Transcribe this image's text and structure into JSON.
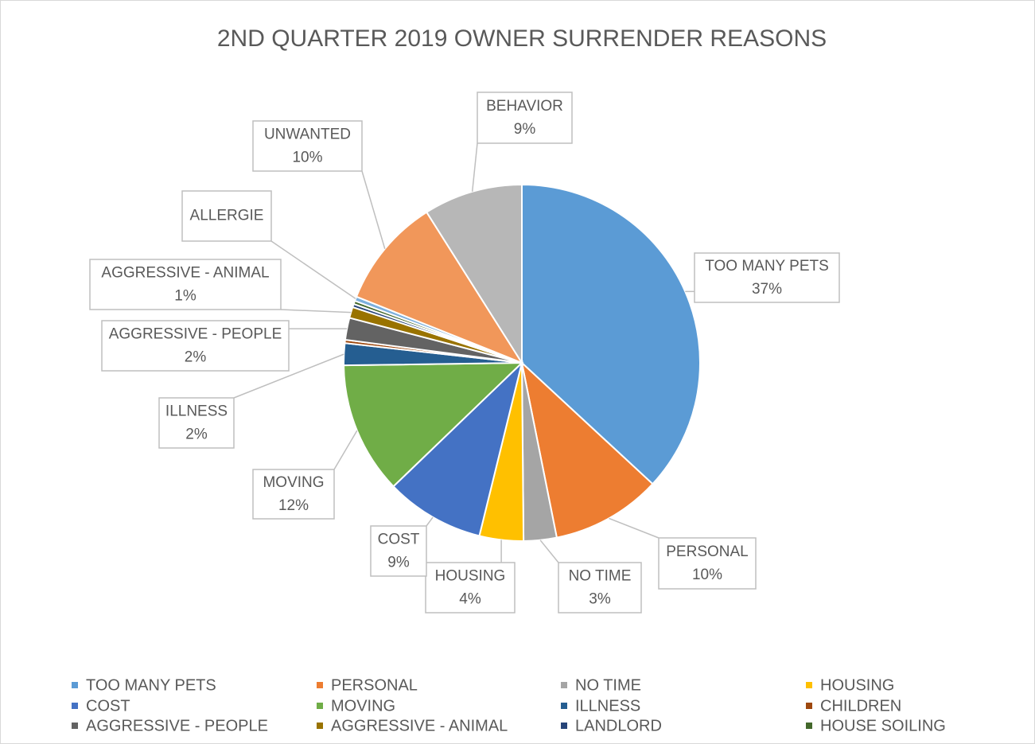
{
  "chart_data": {
    "type": "pie",
    "title": "2ND QUARTER 2019 OWNER SURRENDER REASONS",
    "categories": [
      "TOO MANY PETS",
      "PERSONAL",
      "NO TIME",
      "HOUSING",
      "COST",
      "MOVING",
      "ILLNESS",
      "CHILDREN",
      "AGGRESSIVE - PEOPLE",
      "AGGRESSIVE - ANIMAL",
      "LANDLORD",
      "HOUSE SOILING",
      "ALLERGIE",
      "UNWANTED",
      "BEHAVIOR"
    ],
    "values": [
      37,
      10,
      3,
      4,
      9,
      12,
      2,
      0.3,
      2,
      1,
      0.3,
      0.3,
      0.4,
      10,
      9
    ],
    "value_labels": [
      "37%",
      "10%",
      "3%",
      "4%",
      "9%",
      "12%",
      "2%",
      null,
      "2%",
      "1%",
      null,
      null,
      null,
      "10%",
      "9%"
    ],
    "colors": [
      "#5b9bd5",
      "#ed7d31",
      "#a5a5a5",
      "#ffc000",
      "#4472c4",
      "#70ad47",
      "#255e91",
      "#9e480e",
      "#636363",
      "#997300",
      "#264478",
      "#43682b",
      "#7cafdd",
      "#f1975a",
      "#b7b7b7"
    ],
    "legend": "bottom"
  }
}
